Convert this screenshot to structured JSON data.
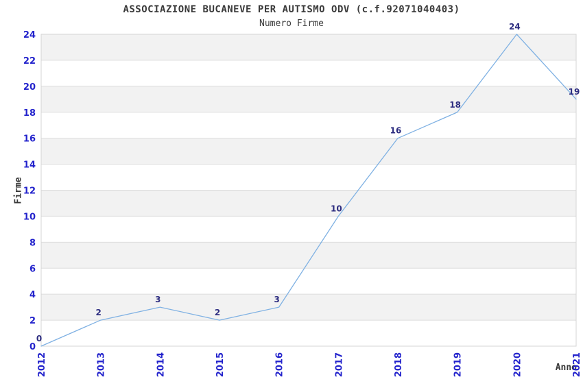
{
  "chart_data": {
    "type": "line",
    "title": "ASSOCIAZIONE BUCANEVE PER AUTISMO ODV (c.f.92071040403)",
    "subtitle": "Numero Firme",
    "xlabel": "Anno",
    "ylabel": "Firme",
    "categories": [
      "2012",
      "2013",
      "2014",
      "2015",
      "2016",
      "2017",
      "2018",
      "2019",
      "2020",
      "2021"
    ],
    "series": [
      {
        "name": "Numero Firme",
        "values": [
          0,
          2,
          3,
          2,
          3,
          10,
          16,
          18,
          24,
          19
        ]
      }
    ],
    "ylim": [
      0,
      24
    ],
    "ytick_step": 2,
    "grid": true,
    "legend_position": "none",
    "data_labels_shown": true,
    "x_tick_rotation_deg": -90,
    "colors": {
      "line": "#7fb1e3",
      "tick_labels": "#2323cc",
      "data_labels": "#2d2d80",
      "title_text": "#3a3a3a",
      "grid_line": "#dcdcdc",
      "plot_border": "#d4d4d4",
      "band_fill": "#f2f2f2",
      "background": "#ffffff"
    }
  }
}
